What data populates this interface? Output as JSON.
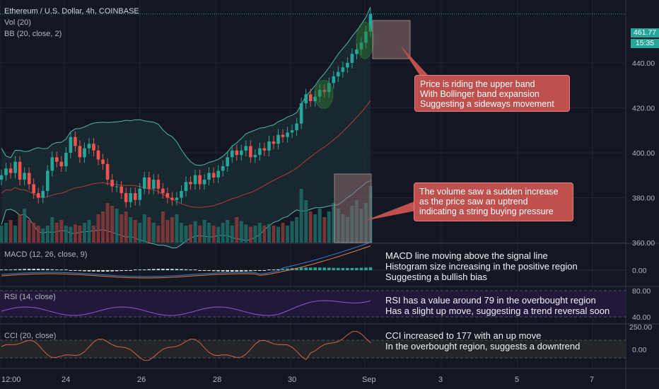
{
  "header": {
    "title": "Ethereum / U.S. Dollar, 4h, COINBASE",
    "vol_label": "Vol (20)",
    "bb_label": "BB (20, close, 2)"
  },
  "price_badge": {
    "price": "461.77",
    "countdown": "15:35"
  },
  "annotations": {
    "bb_callout": [
      "Price is riding the upper band",
      "With Bollinger band expansion",
      "Suggesting a sideways movement"
    ],
    "volume_callout": [
      "The volume saw a sudden increase",
      "as the price saw an uptrend",
      "indicating a string buying pressure"
    ],
    "macd_note": [
      "MACD line moving above the signal line",
      "Histogram size increasing in the positive region",
      "Suggesting a bullish bias"
    ],
    "rsi_note": [
      "RSI has a value around 79 in the overbought region",
      "Has a slight up move, suggesting a trend reversal soon"
    ],
    "cci_note": [
      "CCI increased to 177 with an up move",
      "In the overbought region, suggests a downtrend"
    ]
  },
  "colors": {
    "background": "#131722",
    "up": "#26a69a",
    "down": "#ef5350",
    "bb_upper": "#4bb8b2",
    "bb_lower": "#5cb7b3",
    "bb_basis": "#b23a3a",
    "bb_fill": "#1c2f35",
    "macd_line": "#3e7bd6",
    "signal_line": "#f07d3c",
    "rsi": "#8f56d8",
    "rsi_band": "#251a3d",
    "cci": "#d9603d",
    "cci_band": "#26272a",
    "callout": "#c0504d",
    "box_fill": "#8a6a6e"
  },
  "chart_data": [
    {
      "type": "candlestick",
      "panel": "price",
      "title": "Ethereum / U.S. Dollar, 4h, COINBASE",
      "x_ticks": [
        "12:00",
        "24",
        "26",
        "28",
        "30",
        "Sep",
        "3",
        "5",
        "7"
      ],
      "y_ticks": [
        "360.00",
        "380.00",
        "400.00",
        "420.00",
        "440.00"
      ],
      "ylim": [
        360,
        468
      ],
      "last_price": 461.77,
      "candles_approx_close": [
        390,
        393,
        391,
        396,
        388,
        391,
        386,
        382,
        380,
        383,
        392,
        398,
        396,
        394,
        400,
        407,
        403,
        398,
        402,
        404,
        401,
        397,
        395,
        388,
        385,
        385,
        382,
        378,
        382,
        379,
        384,
        389,
        384,
        388,
        384,
        382,
        380,
        379,
        380,
        383,
        387,
        386,
        390,
        386,
        388,
        391,
        389,
        392,
        394,
        398,
        401,
        399,
        401,
        403,
        398,
        399,
        402,
        401,
        405,
        404,
        408,
        407,
        409,
        410,
        413,
        422,
        426,
        423,
        425,
        428,
        427,
        431,
        434,
        436,
        438,
        440,
        444,
        446,
        449,
        454,
        461.77
      ],
      "volume_relative": [
        0.3,
        0.35,
        0.4,
        0.3,
        0.5,
        0.6,
        0.4,
        0.35,
        0.3,
        0.25,
        0.3,
        0.45,
        0.35,
        0.4,
        0.3,
        0.28,
        0.32,
        0.3,
        0.35,
        0.4,
        0.3,
        0.5,
        0.55,
        0.7,
        0.65,
        0.6,
        0.5,
        0.55,
        0.45,
        0.4,
        0.35,
        0.5,
        0.45,
        0.35,
        0.3,
        0.55,
        0.4,
        0.45,
        0.5,
        0.35,
        0.3,
        0.32,
        0.38,
        0.3,
        0.4,
        0.35,
        0.3,
        0.28,
        0.35,
        0.4,
        0.3,
        0.45,
        0.38,
        0.32,
        0.28,
        0.3,
        0.35,
        0.3,
        0.33,
        0.3,
        0.28,
        0.35,
        0.3,
        0.38,
        0.45,
        0.95,
        0.75,
        0.55,
        0.5,
        0.6,
        0.45,
        0.55,
        0.7,
        0.6,
        0.5,
        0.45,
        0.65,
        0.75,
        0.6,
        0.7,
        1.0
      ]
    },
    {
      "type": "line",
      "panel": "macd",
      "title": "MACD (12, 26, close, 9)",
      "y_ticks": [
        "0.00"
      ],
      "series": [
        {
          "name": "MACD",
          "trend": "rising above signal"
        },
        {
          "name": "Signal",
          "trend": "rising"
        }
      ]
    },
    {
      "type": "line",
      "panel": "rsi",
      "title": "RSI (14, close)",
      "y_ticks": [
        "80.00",
        "40.00"
      ],
      "last_value": 79
    },
    {
      "type": "line",
      "panel": "cci",
      "title": "CCI (20, close)",
      "y_ticks": [
        "250.00",
        "0.00"
      ],
      "last_value": 177
    }
  ]
}
